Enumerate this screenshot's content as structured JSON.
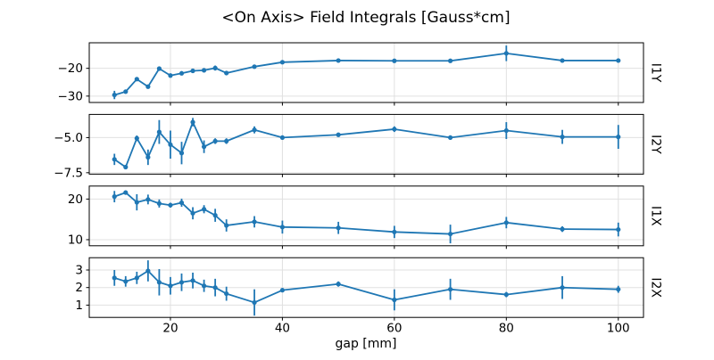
{
  "figure": {
    "title": "<On Axis> Field Integrals [Gauss*cm]",
    "xlabel": "gap [mm]",
    "background": "#ffffff",
    "line_color": "#1f77b4",
    "grid_color": "#e0e0e0",
    "spine_color": "#000000",
    "text_color": "#000000"
  },
  "chart_data": [
    {
      "type": "line",
      "series_label": "I1Y",
      "x": [
        10,
        12,
        14,
        16,
        18,
        20,
        22,
        24,
        26,
        28,
        30,
        35,
        40,
        50,
        60,
        70,
        80,
        90,
        100
      ],
      "y": [
        -29.6,
        -28.4,
        -23.9,
        -26.6,
        -20.1,
        -22.6,
        -21.8,
        -20.9,
        -20.7,
        -19.9,
        -21.7,
        -19.4,
        -17.8,
        -17.2,
        -17.3,
        -17.3,
        -14.6,
        -17.2,
        -17.2
      ],
      "yerr": [
        1.5,
        0.4,
        0.5,
        0.6,
        0.4,
        0.3,
        0.3,
        0.3,
        0.3,
        0.9,
        0.3,
        0.3,
        0.3,
        0.5,
        0.3,
        0.3,
        2.8,
        0.4,
        0.3
      ],
      "xlim": [
        5.5,
        104.5
      ],
      "ylim": [
        -32.3,
        -10.8
      ],
      "grid": true,
      "xticks": [
        {
          "v": 20,
          "label": "20"
        },
        {
          "v": 40,
          "label": "40"
        },
        {
          "v": 60,
          "label": "60"
        },
        {
          "v": 80,
          "label": "80"
        },
        {
          "v": 100,
          "label": "100"
        }
      ],
      "yticks": [
        {
          "v": -20,
          "label": "−20"
        },
        {
          "v": -30,
          "label": "−30"
        }
      ]
    },
    {
      "type": "line",
      "series_label": "I2Y",
      "x": [
        10,
        12,
        14,
        16,
        18,
        20,
        22,
        24,
        26,
        28,
        30,
        35,
        40,
        50,
        60,
        70,
        80,
        90,
        100
      ],
      "y": [
        -6.55,
        -7.1,
        -5.05,
        -6.4,
        -4.6,
        -5.5,
        -6.1,
        -3.9,
        -5.65,
        -5.25,
        -5.25,
        -4.45,
        -5.0,
        -4.8,
        -4.4,
        -5.0,
        -4.5,
        -4.95,
        -4.95
      ],
      "yerr": [
        0.4,
        0.15,
        0.2,
        0.55,
        0.85,
        1.0,
        0.8,
        0.3,
        0.45,
        0.2,
        0.2,
        0.25,
        0.1,
        0.15,
        0.2,
        0.15,
        0.6,
        0.5,
        0.85
      ],
      "xlim": [
        5.5,
        104.5
      ],
      "ylim": [
        -7.6,
        -3.35
      ],
      "grid": true,
      "xticks": [
        {
          "v": 20,
          "label": "20"
        },
        {
          "v": 40,
          "label": "40"
        },
        {
          "v": 60,
          "label": "60"
        },
        {
          "v": 80,
          "label": "80"
        },
        {
          "v": 100,
          "label": "100"
        }
      ],
      "yticks": [
        {
          "v": -5.0,
          "label": "−5.0"
        },
        {
          "v": -7.5,
          "label": "−7.5"
        }
      ]
    },
    {
      "type": "line",
      "series_label": "I1X",
      "x": [
        10,
        12,
        14,
        16,
        18,
        20,
        22,
        24,
        26,
        28,
        30,
        35,
        40,
        50,
        60,
        70,
        80,
        90,
        100
      ],
      "y": [
        20.6,
        21.6,
        19.2,
        19.9,
        18.9,
        18.5,
        19.1,
        16.5,
        17.5,
        16.0,
        13.5,
        14.4,
        13.1,
        12.9,
        11.9,
        11.4,
        14.2,
        12.6,
        12.5
      ],
      "yerr": [
        1.4,
        0.5,
        2.0,
        1.2,
        1.0,
        0.6,
        1.0,
        1.5,
        1.0,
        1.6,
        1.5,
        1.4,
        1.6,
        1.5,
        1.5,
        2.3,
        1.4,
        0.7,
        1.7
      ],
      "xlim": [
        5.5,
        104.5
      ],
      "ylim": [
        8.5,
        23.2
      ],
      "grid": true,
      "xticks": [
        {
          "v": 20,
          "label": "20"
        },
        {
          "v": 40,
          "label": "40"
        },
        {
          "v": 60,
          "label": "60"
        },
        {
          "v": 80,
          "label": "80"
        },
        {
          "v": 100,
          "label": "100"
        }
      ],
      "yticks": [
        {
          "v": 20,
          "label": "20"
        },
        {
          "v": 10,
          "label": "10"
        }
      ]
    },
    {
      "type": "line",
      "series_label": "I2X",
      "x": [
        10,
        12,
        14,
        16,
        18,
        20,
        22,
        24,
        26,
        28,
        30,
        35,
        40,
        50,
        60,
        70,
        80,
        90,
        100
      ],
      "y": [
        2.55,
        2.35,
        2.55,
        2.95,
        2.3,
        2.1,
        2.3,
        2.4,
        2.1,
        2.0,
        1.65,
        1.15,
        1.85,
        2.2,
        1.3,
        1.9,
        1.6,
        2.0,
        1.9
      ],
      "yerr": [
        0.45,
        0.3,
        0.35,
        0.6,
        0.75,
        0.5,
        0.5,
        0.45,
        0.35,
        0.5,
        0.4,
        0.75,
        0.1,
        0.15,
        0.6,
        0.6,
        0.15,
        0.65,
        0.2
      ],
      "xlim": [
        5.5,
        104.5
      ],
      "ylim": [
        0.3,
        3.7
      ],
      "grid": true,
      "xticks": [
        {
          "v": 20,
          "label": "20"
        },
        {
          "v": 40,
          "label": "40"
        },
        {
          "v": 60,
          "label": "60"
        },
        {
          "v": 80,
          "label": "80"
        },
        {
          "v": 100,
          "label": "100"
        }
      ],
      "yticks": [
        {
          "v": 3,
          "label": "3"
        },
        {
          "v": 2,
          "label": "2"
        },
        {
          "v": 1,
          "label": "1"
        }
      ]
    }
  ]
}
